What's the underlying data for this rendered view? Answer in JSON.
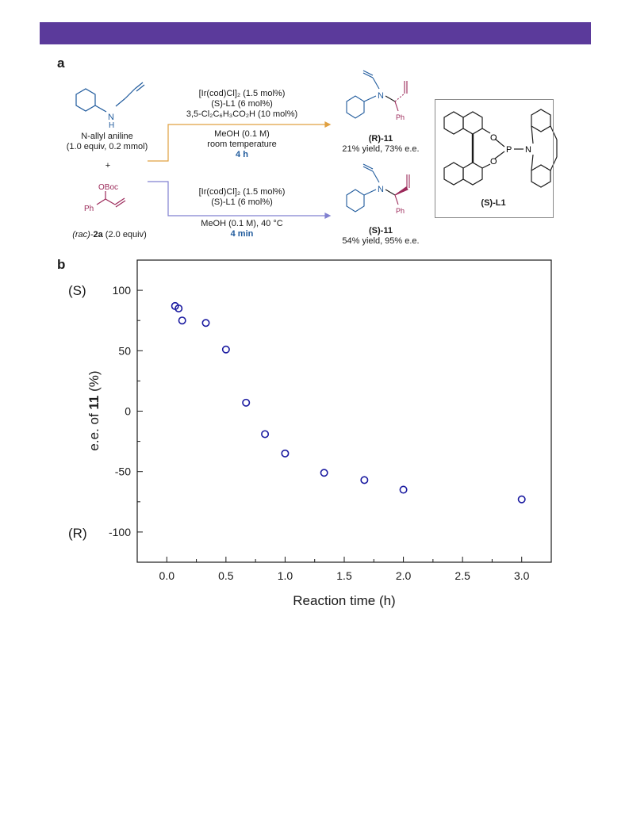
{
  "panel_a": {
    "label": "a",
    "reactant_name": "N-allyl aniline",
    "reactant_amount": "(1.0 equiv, 0.2 mmol)",
    "plus": "+",
    "reactant2_name_prefix": "(rac)-",
    "reactant2_name_bold": "2a",
    "reactant2_name_suffix": " (2.0 equiv)",
    "reactant2_obc": "OBoc",
    "reactant2_ph": "Ph",
    "reactant_nh": "N",
    "reactant_h": "H",
    "top_conditions": {
      "line1": "[Ir(cod)Cl]₂ (1.5 mol%)",
      "line2": "(S)-L1 (6 mol%)",
      "line3": "3,5-Cl₂C₆H₃CO₂H (10 mol%)",
      "line4": "MeOH (0.1 M)",
      "line5": "room temperature",
      "time": "4 h"
    },
    "bottom_conditions": {
      "line1": "[Ir(cod)Cl]₂ (1.5 mol%)",
      "line2": "(S)-L1 (6 mol%)",
      "line3": "MeOH (0.1 M), 40 °C",
      "time": "4 min"
    },
    "product_top_label": "(R)-11",
    "product_top_yield": "21% yield, 73% e.e.",
    "product_bottom_label": "(S)-11",
    "product_bottom_yield": "54% yield, 95% e.e.",
    "product_ph": "Ph",
    "product_n": "N",
    "ligand_label": "(S)-L1",
    "ligand_o1": "O",
    "ligand_o2": "O",
    "ligand_p": "P",
    "ligand_n": "N",
    "colors": {
      "top_arrow": "#e0a040",
      "bottom_arrow": "#8080d0",
      "reactant": "#1f5a9c",
      "allyl_reagent": "#9c2a5a",
      "header_bar": "#5b3a9b"
    }
  },
  "panel_b": {
    "label": "b"
  },
  "chart_data": {
    "type": "scatter",
    "xlabel": "Reaction time (h)",
    "ylabel_prefix": "e.e. of ",
    "ylabel_bold": "11",
    "ylabel_suffix": " (%)",
    "xlim": [
      -0.25,
      3.25
    ],
    "ylim": [
      -125,
      125
    ],
    "xticks": [
      0.0,
      0.5,
      1.0,
      1.5,
      2.0,
      2.5,
      3.0
    ],
    "xtick_labels": [
      "0.0",
      "0.5",
      "1.0",
      "1.5",
      "2.0",
      "2.5",
      "3.0"
    ],
    "yticks": [
      100,
      50,
      0,
      -50,
      -100
    ],
    "ytick_labels": [
      "100",
      "50",
      "0",
      "-50",
      "-100"
    ],
    "y_annotation_top": "(S)",
    "y_annotation_bottom": "(R)",
    "marker_color": "#1a1aa0",
    "grid": false,
    "series": [
      {
        "x": [
          0.07,
          0.1,
          0.13,
          0.33,
          0.5,
          0.67,
          0.83,
          1.0,
          1.33,
          1.67,
          2.0,
          3.0
        ],
        "y": [
          87,
          85,
          75,
          73,
          51,
          7,
          -19,
          -35,
          -51,
          -57,
          -65,
          -73
        ]
      }
    ]
  }
}
